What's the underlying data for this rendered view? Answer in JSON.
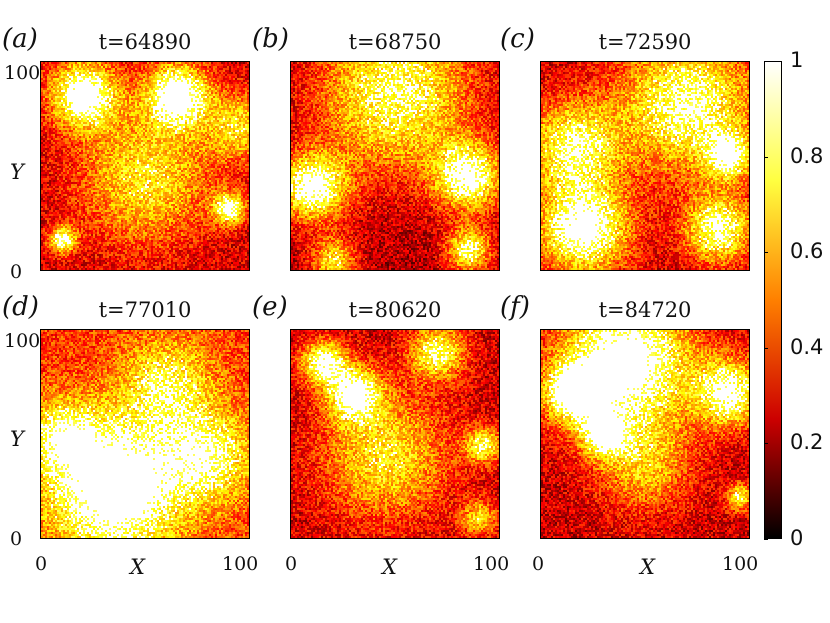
{
  "chart_data": {
    "type": "heatmap",
    "panels": [
      {
        "label": "(a)",
        "title": "t=64890"
      },
      {
        "label": "(b)",
        "title": "t=68750"
      },
      {
        "label": "(c)",
        "title": "t=72590"
      },
      {
        "label": "(d)",
        "title": "t=77010"
      },
      {
        "label": "(e)",
        "title": "t=80620"
      },
      {
        "label": "(f)",
        "title": "t=84720"
      }
    ],
    "xlabel": "X",
    "ylabel": "Y",
    "xlim": [
      0,
      100
    ],
    "ylim": [
      0,
      100
    ],
    "x_ticks": [
      "0",
      "100"
    ],
    "y_ticks": [
      "0",
      "100"
    ],
    "colorbar": {
      "range": [
        0,
        1
      ],
      "ticks": [
        "0",
        "0.2",
        "0.4",
        "0.6",
        "0.8",
        "1"
      ],
      "colormap": "hot",
      "colors": [
        "#000000",
        "#cc0000",
        "#ff8000",
        "#ffff40",
        "#ffffff"
      ]
    }
  }
}
